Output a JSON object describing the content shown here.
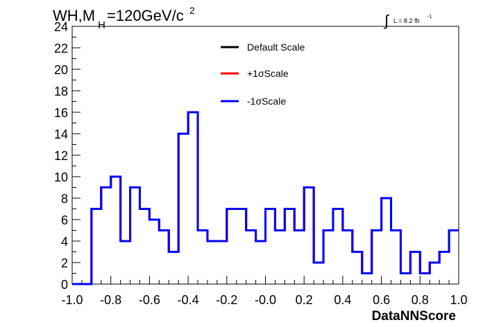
{
  "header": {
    "title_main": "WH,M",
    "title_sub": "H",
    "title_rest": "=120GeV/c",
    "title_sup": "2",
    "lumi_main": "L = 8.2 fb",
    "lumi_sup": "-1",
    "integral_symbol": "∫"
  },
  "chart_data": {
    "type": "line",
    "title": "",
    "xlabel": "DataNNScore",
    "ylabel": "",
    "xlim": [
      -1.0,
      1.0
    ],
    "ylim": [
      0,
      24
    ],
    "x_ticks": [
      "-1.0",
      "-0.8",
      "-0.6",
      "-0.4",
      "-0.2",
      "-0.0",
      "0.2",
      "0.4",
      "0.6",
      "0.8",
      "1.0"
    ],
    "x_tick_values": [
      -1.0,
      -0.8,
      -0.6,
      -0.4,
      -0.2,
      0.0,
      0.2,
      0.4,
      0.6,
      0.8,
      1.0
    ],
    "y_ticks": [
      "0",
      "2",
      "4",
      "6",
      "8",
      "10",
      "12",
      "14",
      "16",
      "18",
      "20",
      "22",
      "24"
    ],
    "y_tick_values": [
      0,
      2,
      4,
      6,
      8,
      10,
      12,
      14,
      16,
      18,
      20,
      22,
      24
    ],
    "grid": false,
    "legend_position": "top-center",
    "bin_edges": [
      -1.0,
      -0.95,
      -0.9,
      -0.85,
      -0.8,
      -0.75,
      -0.7,
      -0.65,
      -0.6,
      -0.55,
      -0.5,
      -0.45,
      -0.4,
      -0.35,
      -0.3,
      -0.25,
      -0.2,
      -0.15,
      -0.1,
      -0.05,
      0.0,
      0.05,
      0.1,
      0.15,
      0.2,
      0.25,
      0.3,
      0.35,
      0.4,
      0.45,
      0.5,
      0.55,
      0.6,
      0.65,
      0.7,
      0.75,
      0.8,
      0.85,
      0.9,
      0.95,
      1.0
    ],
    "series": [
      {
        "name": "Default Scale",
        "color": "#000000",
        "values": [
          0,
          0,
          7,
          9,
          10,
          4,
          9,
          7,
          6,
          5,
          3,
          14,
          16,
          5,
          4,
          4,
          7,
          7,
          5,
          4,
          7,
          5,
          7,
          5,
          9,
          2,
          5,
          7,
          5,
          3,
          1,
          5,
          8,
          5,
          1,
          3,
          1,
          2,
          3,
          5
        ]
      },
      {
        "name": "+1σScale",
        "color": "#ff0000",
        "values": [
          0,
          0,
          7,
          9,
          10,
          4,
          9,
          7,
          6,
          5,
          3,
          14,
          16,
          5,
          4,
          4,
          7,
          7,
          5,
          4,
          7,
          5,
          7,
          5,
          9,
          2,
          5,
          7,
          5,
          3,
          1,
          5,
          8,
          5,
          1,
          3,
          1,
          2,
          3,
          5
        ]
      },
      {
        "name": "-1σScale",
        "color": "#0000ff",
        "values": [
          0,
          0,
          7,
          9,
          10,
          4,
          9,
          7,
          6,
          5,
          3,
          14,
          16,
          5,
          4,
          4,
          7,
          7,
          5,
          4,
          7,
          5,
          7,
          5,
          9,
          2,
          5,
          7,
          5,
          3,
          1,
          5,
          8,
          5,
          1,
          3,
          1,
          2,
          3,
          5
        ]
      }
    ]
  }
}
